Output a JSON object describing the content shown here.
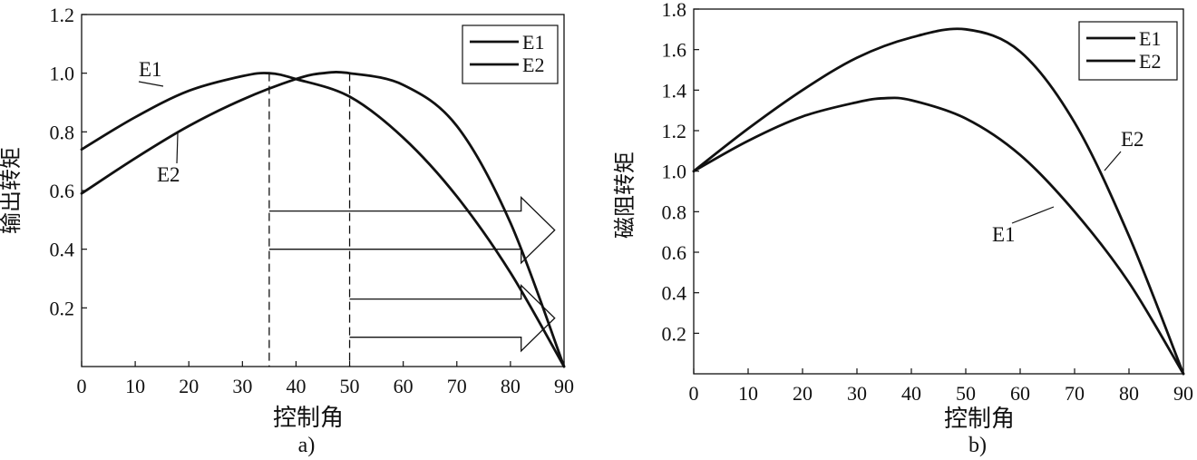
{
  "chart_data": [
    {
      "id": "a",
      "type": "line",
      "caption": "a)",
      "xlabel": "控制角",
      "ylabel": "输出转矩",
      "xlim": [
        0,
        90
      ],
      "ylim": [
        0,
        1.2
      ],
      "xticks": [
        0,
        10,
        20,
        30,
        40,
        50,
        60,
        70,
        80,
        90
      ],
      "xtick_labels": [
        "0",
        "10",
        "20",
        "30",
        "40",
        "50",
        "60",
        "70",
        "80",
        "90"
      ],
      "yticks": [
        0.2,
        0.4,
        0.6,
        0.8,
        1.0,
        1.2
      ],
      "ytick_labels": [
        "0.2",
        "0.4",
        "0.6",
        "0.8",
        "1.0",
        "1.2"
      ],
      "legend": {
        "position": "top-right",
        "entries": [
          "E1",
          "E2"
        ]
      },
      "series": [
        {
          "name": "E1",
          "x": [
            0,
            10,
            20,
            30,
            35,
            40,
            50,
            60,
            70,
            80,
            90
          ],
          "y": [
            0.74,
            0.85,
            0.94,
            0.99,
            1.0,
            0.98,
            0.92,
            0.78,
            0.58,
            0.32,
            0.0
          ]
        },
        {
          "name": "E2",
          "x": [
            0,
            10,
            20,
            30,
            40,
            45,
            50,
            60,
            70,
            80,
            90
          ],
          "y": [
            0.59,
            0.71,
            0.82,
            0.91,
            0.98,
            1.0,
            1.0,
            0.96,
            0.82,
            0.49,
            0.0
          ]
        }
      ],
      "annotations": [
        {
          "text": "E1",
          "series": "E1"
        },
        {
          "text": "E2",
          "series": "E2"
        }
      ],
      "reference_lines": [
        {
          "x": 35,
          "style": "dashed"
        },
        {
          "x": 50,
          "style": "dashed"
        }
      ],
      "arrows": [
        {
          "from_x": 35,
          "to_x": 82,
          "y_top": 0.53,
          "y_bottom": 0.4
        },
        {
          "from_x": 50,
          "to_x": 82,
          "y_top": 0.23,
          "y_bottom": 0.1
        }
      ]
    },
    {
      "id": "b",
      "type": "line",
      "caption": "b)",
      "xlabel": "控制角",
      "ylabel": "磁阻转矩",
      "xlim": [
        0,
        90
      ],
      "ylim": [
        0,
        1.8
      ],
      "xticks": [
        0,
        10,
        20,
        30,
        40,
        50,
        60,
        70,
        80,
        90
      ],
      "xtick_labels": [
        "0",
        "10",
        "20",
        "30",
        "40",
        "50",
        "60",
        "70",
        "80",
        "90"
      ],
      "yticks": [
        0.2,
        0.4,
        0.6,
        0.8,
        1.0,
        1.2,
        1.4,
        1.6,
        1.8
      ],
      "ytick_labels": [
        "0.2",
        "0.4",
        "0.6",
        "0.8",
        "1.0",
        "1.2",
        "1.4",
        "1.6",
        "1.8"
      ],
      "legend": {
        "position": "top-right",
        "entries": [
          "E1",
          "E2"
        ]
      },
      "series": [
        {
          "name": "E1",
          "x": [
            0,
            10,
            20,
            30,
            35,
            40,
            50,
            60,
            70,
            80,
            90
          ],
          "y": [
            1.0,
            1.15,
            1.27,
            1.34,
            1.36,
            1.35,
            1.26,
            1.08,
            0.8,
            0.45,
            0.0
          ]
        },
        {
          "name": "E2",
          "x": [
            0,
            10,
            20,
            30,
            40,
            50,
            60,
            70,
            80,
            90
          ],
          "y": [
            1.0,
            1.21,
            1.4,
            1.56,
            1.66,
            1.7,
            1.59,
            1.24,
            0.68,
            0.0
          ]
        }
      ],
      "annotations": [
        {
          "text": "E1",
          "series": "E1"
        },
        {
          "text": "E2",
          "series": "E2"
        }
      ]
    }
  ]
}
